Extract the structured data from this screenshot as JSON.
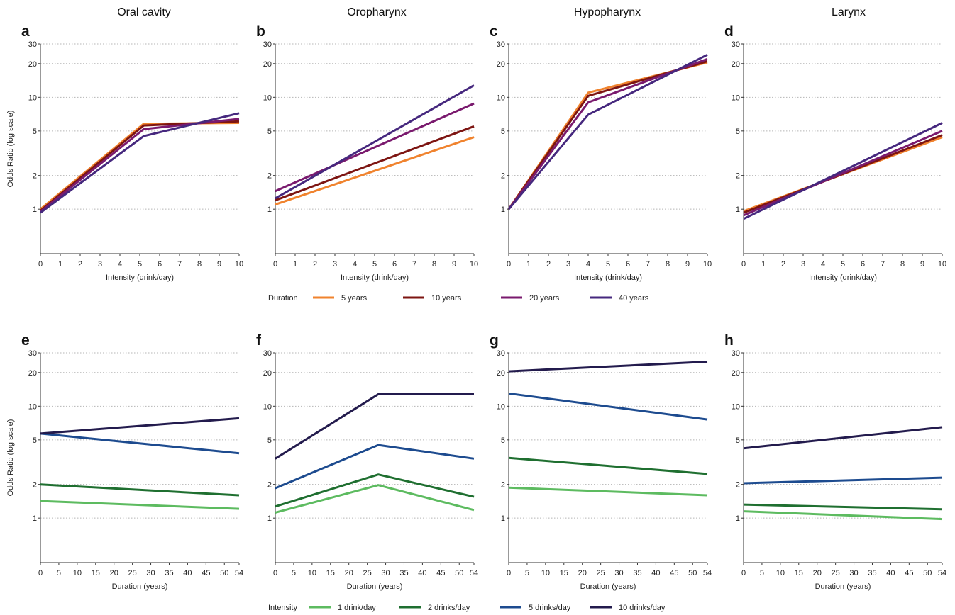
{
  "column_titles": [
    "Oral cavity",
    "Oropharynx",
    "Hypopharynx",
    "Larynx"
  ],
  "legends": {
    "duration": {
      "title": "Duration",
      "items": [
        {
          "label": "5 years",
          "color": "#f0832e"
        },
        {
          "label": "10 years",
          "color": "#7d1512"
        },
        {
          "label": "20 years",
          "color": "#7a1a6e"
        },
        {
          "label": "40 years",
          "color": "#46287e"
        }
      ]
    },
    "intensity": {
      "title": "Intensity",
      "items": [
        {
          "label": "1 drink/day",
          "color": "#5dbb60"
        },
        {
          "label": "2 drinks/day",
          "color": "#1f6f30"
        },
        {
          "label": "5 drinks/day",
          "color": "#1d4b8f"
        },
        {
          "label": "10 drinks/day",
          "color": "#231b4d"
        }
      ]
    }
  },
  "chart_data": [
    {
      "panel": "a",
      "type": "line",
      "title": "Oral cavity",
      "ylabel": "Odds Ratio (log scale)",
      "xlabel": "Intensity (drink/day)",
      "yscale": "log",
      "ylim": [
        0.4,
        30
      ],
      "yticks": [
        1,
        2,
        5,
        10,
        20,
        30
      ],
      "xlim": [
        0,
        10
      ],
      "xticks": [
        0,
        1,
        2,
        3,
        4,
        5,
        6,
        7,
        8,
        9,
        10
      ],
      "grid": "y-dotted",
      "legend": "duration",
      "series": [
        {
          "name": "5 years",
          "x": [
            0,
            5.2,
            10
          ],
          "y": [
            1.0,
            5.8,
            5.9
          ]
        },
        {
          "name": "10 years",
          "x": [
            0,
            5.2,
            10
          ],
          "y": [
            0.97,
            5.6,
            6.1
          ]
        },
        {
          "name": "20 years",
          "x": [
            0,
            5.2,
            10
          ],
          "y": [
            0.95,
            5.2,
            6.4
          ]
        },
        {
          "name": "40 years",
          "x": [
            0,
            5.2,
            10
          ],
          "y": [
            0.93,
            4.5,
            7.2
          ]
        }
      ]
    },
    {
      "panel": "b",
      "type": "line",
      "title": "Oropharynx",
      "ylabel": "",
      "xlabel": "Intensity (drink/day)",
      "yscale": "log",
      "ylim": [
        0.4,
        30
      ],
      "yticks": [
        1,
        2,
        5,
        10,
        20,
        30
      ],
      "xlim": [
        0,
        10
      ],
      "xticks": [
        0,
        1,
        2,
        3,
        4,
        5,
        6,
        7,
        8,
        9,
        10
      ],
      "grid": "y-dotted",
      "legend": "duration",
      "series": [
        {
          "name": "5 years",
          "x": [
            0,
            10
          ],
          "y": [
            1.1,
            4.4
          ]
        },
        {
          "name": "10 years",
          "x": [
            0,
            10
          ],
          "y": [
            1.2,
            5.5
          ]
        },
        {
          "name": "20 years",
          "x": [
            0,
            10
          ],
          "y": [
            1.45,
            8.8
          ]
        },
        {
          "name": "40 years",
          "x": [
            0,
            10
          ],
          "y": [
            1.25,
            12.8
          ]
        }
      ]
    },
    {
      "panel": "c",
      "type": "line",
      "title": "Hypopharynx",
      "ylabel": "",
      "xlabel": "Intensity (drink/day)",
      "yscale": "log",
      "ylim": [
        0.4,
        30
      ],
      "yticks": [
        1,
        2,
        5,
        10,
        20,
        30
      ],
      "xlim": [
        0,
        10
      ],
      "xticks": [
        0,
        1,
        2,
        3,
        4,
        5,
        6,
        7,
        8,
        9,
        10
      ],
      "grid": "y-dotted",
      "legend": "duration",
      "series": [
        {
          "name": "5 years",
          "x": [
            0,
            4,
            10
          ],
          "y": [
            1.0,
            11.0,
            20.5
          ]
        },
        {
          "name": "10 years",
          "x": [
            0,
            4,
            10
          ],
          "y": [
            1.0,
            10.3,
            21.0
          ]
        },
        {
          "name": "20 years",
          "x": [
            0,
            4,
            10
          ],
          "y": [
            1.0,
            9.0,
            22.0
          ]
        },
        {
          "name": "40 years",
          "x": [
            0,
            4,
            10
          ],
          "y": [
            1.0,
            7.0,
            24.0
          ]
        }
      ]
    },
    {
      "panel": "d",
      "type": "line",
      "title": "Larynx",
      "ylabel": "",
      "xlabel": "Intensity (drink/day)",
      "yscale": "log",
      "ylim": [
        0.4,
        30
      ],
      "yticks": [
        1,
        2,
        5,
        10,
        20,
        30
      ],
      "xlim": [
        0,
        10
      ],
      "xticks": [
        0,
        1,
        2,
        3,
        4,
        5,
        6,
        7,
        8,
        9,
        10
      ],
      "grid": "y-dotted",
      "legend": "duration",
      "series": [
        {
          "name": "5 years",
          "x": [
            0,
            10
          ],
          "y": [
            0.96,
            4.4
          ]
        },
        {
          "name": "10 years",
          "x": [
            0,
            10
          ],
          "y": [
            0.93,
            4.6
          ]
        },
        {
          "name": "20 years",
          "x": [
            0,
            10
          ],
          "y": [
            0.88,
            5.0
          ]
        },
        {
          "name": "40 years",
          "x": [
            0,
            10
          ],
          "y": [
            0.82,
            5.9
          ]
        }
      ]
    },
    {
      "panel": "e",
      "type": "line",
      "title": "",
      "ylabel": "Odds Ratio (log scale)",
      "xlabel": "Duration (years)",
      "yscale": "log",
      "ylim": [
        0.4,
        30
      ],
      "yticks": [
        1,
        2,
        5,
        10,
        20,
        30
      ],
      "xlim": [
        0,
        54
      ],
      "xticks": [
        0,
        5,
        10,
        15,
        20,
        25,
        30,
        35,
        40,
        45,
        50,
        54
      ],
      "grid": "y-dotted",
      "legend": "intensity",
      "series": [
        {
          "name": "1 drink/day",
          "x": [
            0,
            54
          ],
          "y": [
            1.42,
            1.21
          ]
        },
        {
          "name": "2 drinks/day",
          "x": [
            0,
            54
          ],
          "y": [
            2.0,
            1.6
          ]
        },
        {
          "name": "5 drinks/day",
          "x": [
            0,
            54
          ],
          "y": [
            5.7,
            3.8
          ]
        },
        {
          "name": "10 drinks/day",
          "x": [
            0,
            54
          ],
          "y": [
            5.7,
            7.8
          ]
        }
      ]
    },
    {
      "panel": "f",
      "type": "line",
      "title": "",
      "ylabel": "",
      "xlabel": "Duration (years)",
      "yscale": "log",
      "ylim": [
        0.4,
        30
      ],
      "yticks": [
        1,
        2,
        5,
        10,
        20,
        30
      ],
      "xlim": [
        0,
        54
      ],
      "xticks": [
        0,
        5,
        10,
        15,
        20,
        25,
        30,
        35,
        40,
        45,
        50,
        54
      ],
      "grid": "y-dotted",
      "legend": "intensity",
      "series": [
        {
          "name": "1 drink/day",
          "x": [
            0,
            28,
            54
          ],
          "y": [
            1.12,
            1.97,
            1.18
          ]
        },
        {
          "name": "2 drinks/day",
          "x": [
            0,
            28,
            54
          ],
          "y": [
            1.27,
            2.45,
            1.55
          ]
        },
        {
          "name": "5 drinks/day",
          "x": [
            0,
            28,
            54
          ],
          "y": [
            1.85,
            4.5,
            3.4
          ]
        },
        {
          "name": "10 drinks/day",
          "x": [
            0,
            28,
            54
          ],
          "y": [
            3.4,
            12.8,
            12.9
          ]
        }
      ]
    },
    {
      "panel": "g",
      "type": "line",
      "title": "",
      "ylabel": "",
      "xlabel": "Duration (years)",
      "yscale": "log",
      "ylim": [
        0.4,
        30
      ],
      "yticks": [
        1,
        2,
        5,
        10,
        20,
        30
      ],
      "xlim": [
        0,
        54
      ],
      "xticks": [
        0,
        5,
        10,
        15,
        20,
        25,
        30,
        35,
        40,
        45,
        50,
        54
      ],
      "grid": "y-dotted",
      "legend": "intensity",
      "series": [
        {
          "name": "1 drink/day",
          "x": [
            0,
            54
          ],
          "y": [
            1.87,
            1.6
          ]
        },
        {
          "name": "2 drinks/day",
          "x": [
            0,
            54
          ],
          "y": [
            3.45,
            2.48
          ]
        },
        {
          "name": "5 drinks/day",
          "x": [
            0,
            54
          ],
          "y": [
            13.0,
            7.6
          ]
        },
        {
          "name": "10 drinks/day",
          "x": [
            0,
            54
          ],
          "y": [
            20.5,
            25.0
          ]
        }
      ]
    },
    {
      "panel": "h",
      "type": "line",
      "title": "",
      "ylabel": "",
      "xlabel": "Duration (years)",
      "yscale": "log",
      "ylim": [
        0.4,
        30
      ],
      "yticks": [
        1,
        2,
        5,
        10,
        20,
        30
      ],
      "xlim": [
        0,
        54
      ],
      "xticks": [
        0,
        5,
        10,
        15,
        20,
        25,
        30,
        35,
        40,
        45,
        50,
        54
      ],
      "grid": "y-dotted",
      "legend": "intensity",
      "series": [
        {
          "name": "1 drink/day",
          "x": [
            0,
            54
          ],
          "y": [
            1.15,
            0.98
          ]
        },
        {
          "name": "2 drinks/day",
          "x": [
            0,
            54
          ],
          "y": [
            1.32,
            1.2
          ]
        },
        {
          "name": "5 drinks/day",
          "x": [
            0,
            54
          ],
          "y": [
            2.05,
            2.3
          ]
        },
        {
          "name": "10 drinks/day",
          "x": [
            0,
            54
          ],
          "y": [
            4.2,
            6.5
          ]
        }
      ]
    }
  ]
}
